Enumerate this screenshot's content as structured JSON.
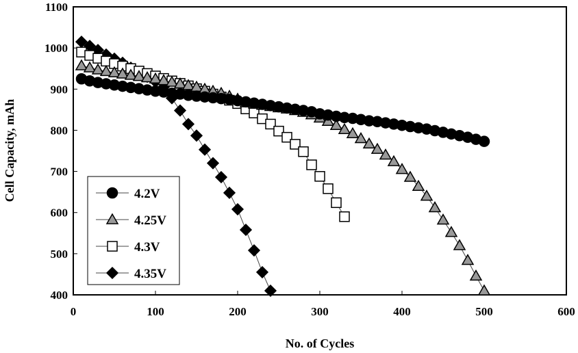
{
  "chart_data": {
    "type": "line",
    "title": "",
    "xlabel": "No. of Cycles",
    "ylabel": "Cell Capacity, mAh",
    "xlim": [
      0,
      600
    ],
    "ylim": [
      400,
      1100
    ],
    "xticks": [
      0,
      100,
      200,
      300,
      400,
      500,
      600
    ],
    "yticks": [
      400,
      500,
      600,
      700,
      800,
      900,
      1000,
      1100
    ],
    "grid": false,
    "legend_position": "bottom-left",
    "series": [
      {
        "name": "4.2V",
        "marker": "circle",
        "fill": "#000000",
        "x": [
          10,
          20,
          30,
          40,
          50,
          60,
          70,
          80,
          90,
          100,
          110,
          120,
          130,
          140,
          150,
          160,
          170,
          180,
          190,
          200,
          210,
          220,
          230,
          240,
          250,
          260,
          270,
          280,
          290,
          300,
          310,
          320,
          330,
          340,
          350,
          360,
          370,
          380,
          390,
          400,
          410,
          420,
          430,
          440,
          450,
          460,
          470,
          480,
          490,
          500
        ],
        "y": [
          925,
          920,
          916,
          913,
          910,
          907,
          904,
          901,
          898,
          895,
          893,
          890,
          888,
          885,
          883,
          881,
          879,
          877,
          875,
          872,
          869,
          866,
          863,
          860,
          857,
          854,
          851,
          848,
          845,
          840,
          837,
          834,
          831,
          829,
          826,
          823,
          821,
          818,
          815,
          812,
          809,
          806,
          803,
          799,
          795,
          791,
          787,
          783,
          778,
          773
        ]
      },
      {
        "name": "4.25V",
        "marker": "triangle",
        "fill": "#999999",
        "x": [
          10,
          20,
          30,
          40,
          50,
          60,
          70,
          80,
          90,
          100,
          110,
          120,
          130,
          140,
          150,
          160,
          170,
          180,
          190,
          200,
          210,
          220,
          230,
          240,
          250,
          260,
          270,
          280,
          290,
          300,
          310,
          320,
          330,
          340,
          350,
          360,
          370,
          380,
          390,
          400,
          410,
          420,
          430,
          440,
          450,
          460,
          470,
          480,
          490,
          500
        ],
        "y": [
          957,
          952,
          947,
          943,
          940,
          937,
          934,
          931,
          928,
          925,
          921,
          917,
          913,
          909,
          905,
          900,
          895,
          890,
          883,
          876,
          867,
          864,
          861,
          858,
          855,
          852,
          848,
          844,
          838,
          830,
          822,
          812,
          802,
          792,
          780,
          767,
          754,
          740,
          724,
          705,
          686,
          664,
          640,
          612,
          582,
          552,
          520,
          484,
          446,
          410
        ]
      },
      {
        "name": "4.3V",
        "marker": "square",
        "fill": "#ffffff",
        "x": [
          10,
          20,
          30,
          40,
          50,
          60,
          70,
          80,
          90,
          100,
          110,
          120,
          130,
          140,
          150,
          160,
          170,
          180,
          190,
          200,
          210,
          220,
          230,
          240,
          250,
          260,
          270,
          280,
          290,
          300,
          310,
          320,
          330
        ],
        "y": [
          990,
          982,
          975,
          968,
          962,
          956,
          950,
          944,
          938,
          932,
          926,
          920,
          914,
          908,
          901,
          895,
          888,
          881,
          873,
          865,
          852,
          842,
          828,
          815,
          798,
          783,
          766,
          748,
          716,
          688,
          658,
          624,
          590
        ]
      },
      {
        "name": "4.35V",
        "marker": "diamond",
        "fill": "#000000",
        "x": [
          10,
          20,
          30,
          40,
          50,
          60,
          70,
          80,
          90,
          100,
          110,
          120,
          130,
          140,
          150,
          160,
          170,
          180,
          190,
          200,
          210,
          220,
          230,
          240
        ],
        "y": [
          1015,
          1005,
          995,
          984,
          974,
          964,
          952,
          941,
          930,
          918,
          905,
          878,
          848,
          815,
          787,
          753,
          720,
          686,
          648,
          608,
          558,
          508,
          455,
          410
        ]
      }
    ]
  }
}
